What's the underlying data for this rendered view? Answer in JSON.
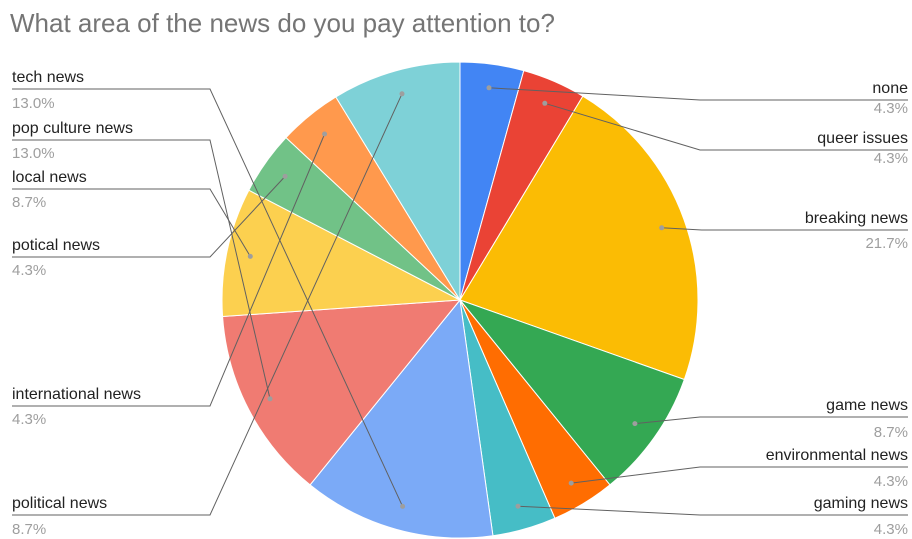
{
  "chart_data": {
    "type": "pie",
    "title": "What area of the news do you pay attention to?",
    "start_angle_deg": 0,
    "direction": "clockwise",
    "slices": [
      {
        "label": "none",
        "percent_label": "4.3%",
        "value": 4.3,
        "color": "#4285F4"
      },
      {
        "label": "queer issues",
        "percent_label": "4.3%",
        "value": 4.3,
        "color": "#EA4335"
      },
      {
        "label": "breaking news",
        "percent_label": "21.7%",
        "value": 21.7,
        "color": "#FBBC04"
      },
      {
        "label": "game news",
        "percent_label": "8.7%",
        "value": 8.7,
        "color": "#34A853"
      },
      {
        "label": "environmental news",
        "percent_label": "4.3%",
        "value": 4.3,
        "color": "#FF6D01"
      },
      {
        "label": "gaming news",
        "percent_label": "4.3%",
        "value": 4.3,
        "color": "#46BDC6"
      },
      {
        "label": "tech news",
        "percent_label": "13.0%",
        "value": 13.0,
        "color": "#7BAAF7"
      },
      {
        "label": "pop culture news",
        "percent_label": "13.0%",
        "value": 13.0,
        "color": "#F07B72"
      },
      {
        "label": "local news",
        "percent_label": "8.7%",
        "value": 8.7,
        "color": "#FCD04F"
      },
      {
        "label": "potical news",
        "percent_label": "4.3%",
        "value": 4.3,
        "color": "#71C287"
      },
      {
        "label": "international news",
        "percent_label": "4.3%",
        "value": 4.3,
        "color": "#FF994D"
      },
      {
        "label": "political news",
        "percent_label": "8.7%",
        "value": 8.7,
        "color": "#7ED1D7"
      }
    ]
  }
}
